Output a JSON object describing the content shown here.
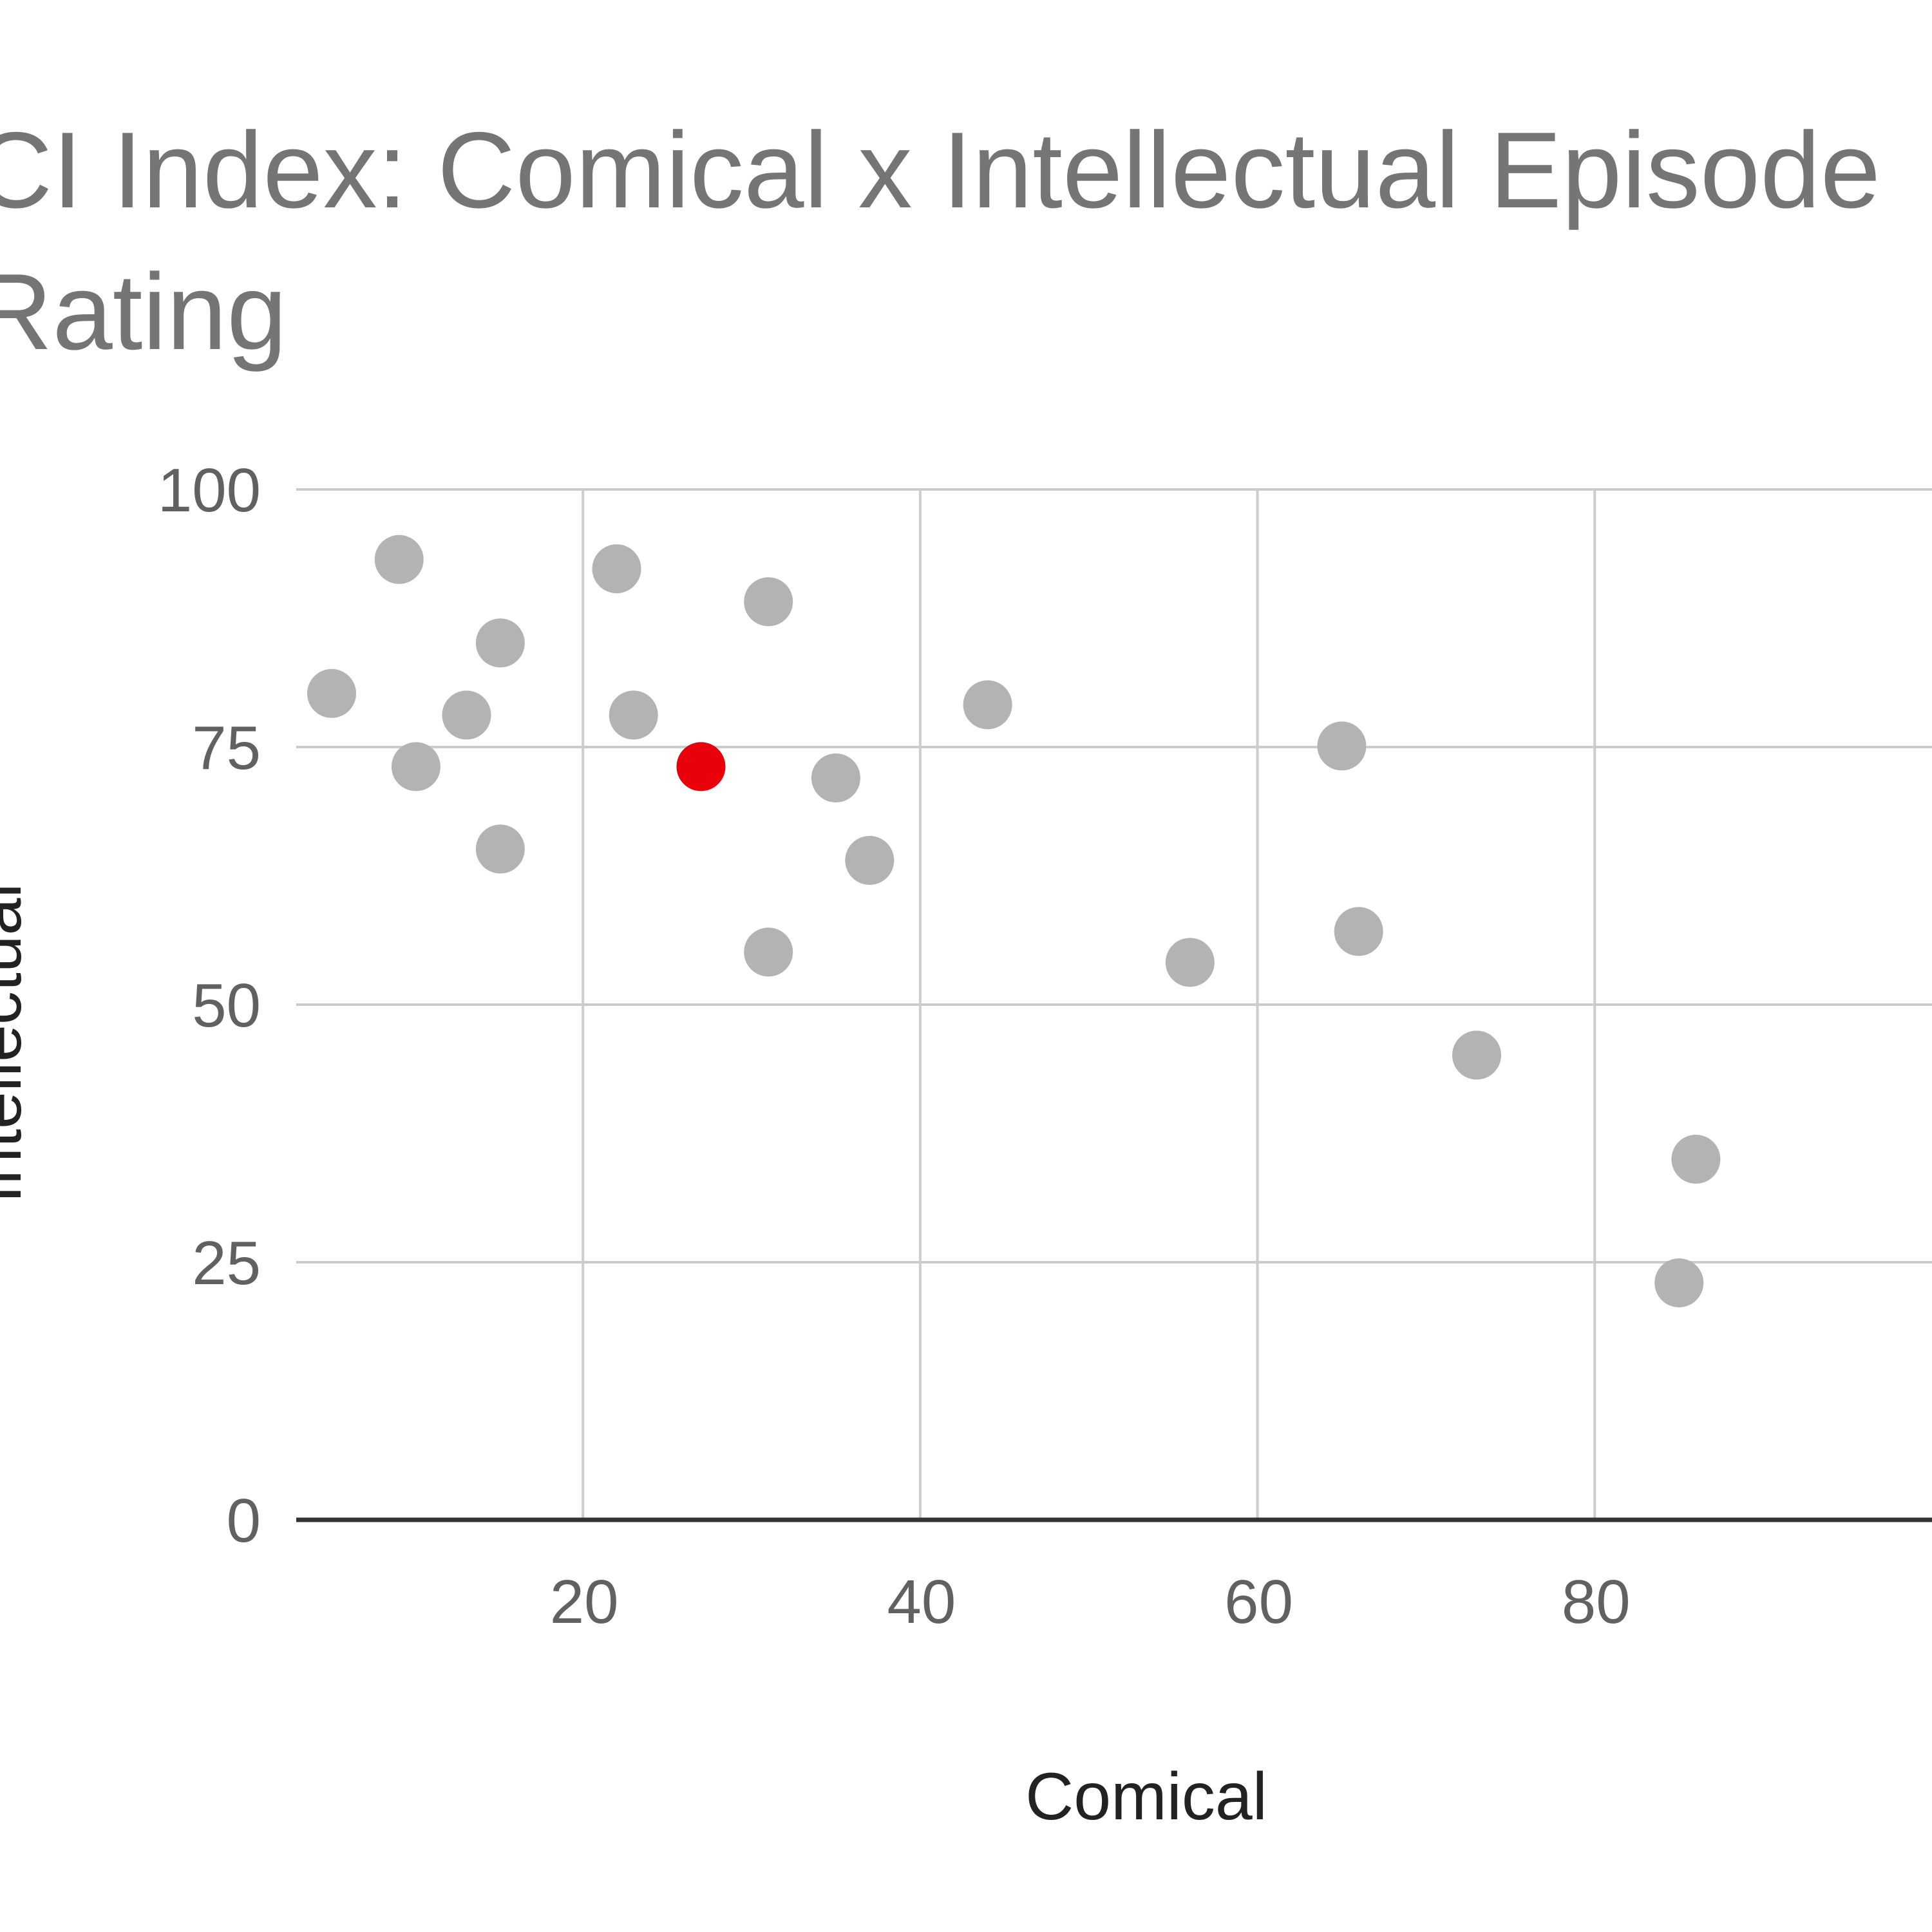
{
  "chart_data": {
    "type": "scatter",
    "title": "CI Index: Comical x Intellectual Episode Rating",
    "title_lines": [
      "CI Index: Comical x Intellectual Episode",
      "Rating"
    ],
    "xlabel": "Comical",
    "ylabel": "Intellectual",
    "xlim": [
      3,
      100
    ],
    "ylim": [
      0,
      100
    ],
    "x_ticks": [
      20,
      40,
      60,
      80
    ],
    "y_ticks": [
      0,
      25,
      50,
      75,
      100
    ],
    "grid": true,
    "legend": "none",
    "colors": {
      "point": "#b3b3b3",
      "highlight": "#e8000b",
      "grid": "#cccccc",
      "baseline": "#333333"
    },
    "points": [
      {
        "x": 9.1,
        "y": 93.2,
        "highlight": false
      },
      {
        "x": 22.0,
        "y": 92.3,
        "highlight": false
      },
      {
        "x": 31.0,
        "y": 89.1,
        "highlight": false
      },
      {
        "x": 15.1,
        "y": 85.1,
        "highlight": false
      },
      {
        "x": 5.1,
        "y": 80.2,
        "highlight": false
      },
      {
        "x": 13.1,
        "y": 78.1,
        "highlight": false
      },
      {
        "x": 23.0,
        "y": 78.1,
        "highlight": false
      },
      {
        "x": 44.0,
        "y": 79.1,
        "highlight": false
      },
      {
        "x": 10.1,
        "y": 73.1,
        "highlight": false
      },
      {
        "x": 27.0,
        "y": 73.1,
        "highlight": true
      },
      {
        "x": 35.0,
        "y": 72.0,
        "highlight": false
      },
      {
        "x": 65.0,
        "y": 75.1,
        "highlight": false
      },
      {
        "x": 15.1,
        "y": 65.1,
        "highlight": false
      },
      {
        "x": 37.0,
        "y": 64.0,
        "highlight": false
      },
      {
        "x": 31.0,
        "y": 55.1,
        "highlight": false
      },
      {
        "x": 56.0,
        "y": 54.1,
        "highlight": false
      },
      {
        "x": 66.0,
        "y": 57.1,
        "highlight": false
      },
      {
        "x": 73.0,
        "y": 45.1,
        "highlight": false
      },
      {
        "x": 86.0,
        "y": 35.0,
        "highlight": false
      },
      {
        "x": 85.0,
        "y": 23.0,
        "highlight": false
      }
    ]
  }
}
